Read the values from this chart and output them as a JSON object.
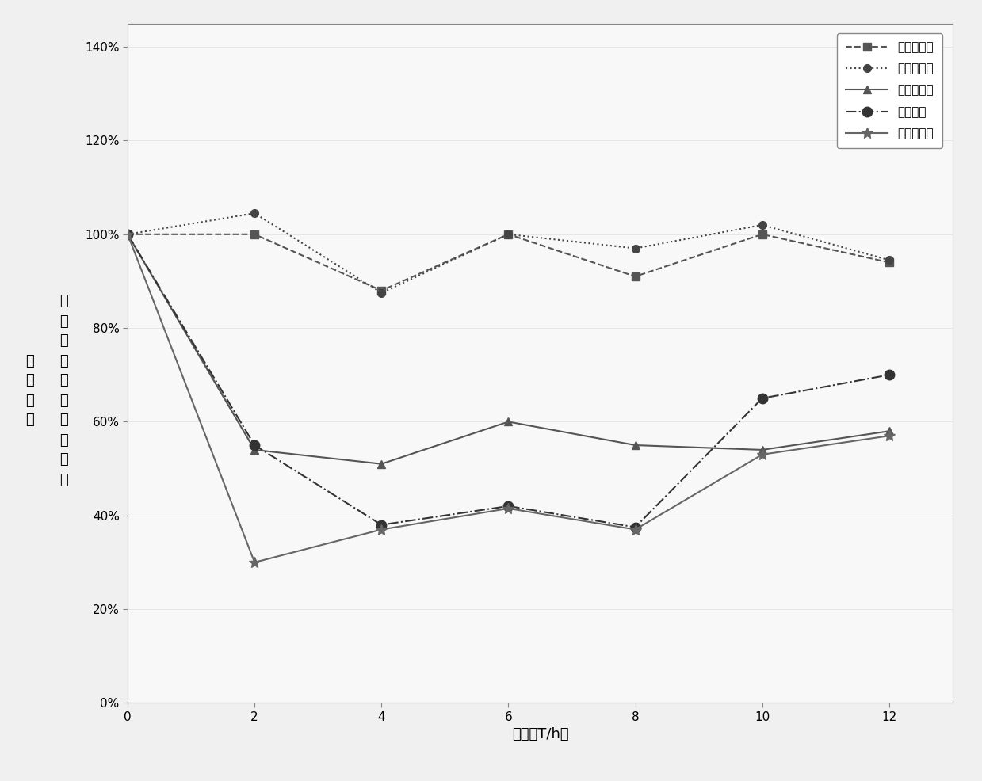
{
  "x": [
    0,
    2,
    4,
    6,
    8,
    10,
    12
  ],
  "series": [
    {
      "name": "生理盐水组",
      "values": [
        1.0,
        1.0,
        0.88,
        1.0,
        0.91,
        1.0,
        0.94
      ],
      "marker": "s",
      "linestyle": "--",
      "color": "#555555",
      "ms": 7
    },
    {
      "name": "空白载体组",
      "values": [
        1.0,
        1.045,
        0.875,
        1.0,
        0.97,
        1.02,
        0.945
      ],
      "marker": "o",
      "linestyle": ":",
      "color": "#444444",
      "ms": 7
    },
    {
      "name": "液晶载药组",
      "values": [
        1.0,
        0.54,
        0.51,
        0.6,
        0.55,
        0.54,
        0.58
      ],
      "marker": "^",
      "linestyle": "-",
      "color": "#555555",
      "ms": 7
    },
    {
      "name": "胰岛素组",
      "values": [
        1.0,
        0.55,
        0.38,
        0.42,
        0.375,
        0.65,
        0.7
      ],
      "marker": "o",
      "linestyle": "-.",
      "color": "#333333",
      "ms": 9
    },
    {
      "name": "脉冲载药组",
      "values": [
        1.0,
        0.3,
        0.37,
        0.415,
        0.37,
        0.53,
        0.57
      ],
      "marker": "*",
      "linestyle": "-",
      "color": "#666666",
      "ms": 10
    }
  ],
  "xlabel": "时间（T/h）",
  "ylabel_left": "血\n糖\n浓\n度",
  "ylabel_right": "（\n与\n初\n始\n血\n糖\n自\n分\n比\n）",
  "xlim": [
    0,
    13
  ],
  "ylim": [
    0.0,
    1.45
  ],
  "xticks": [
    0,
    2,
    4,
    6,
    8,
    10,
    12
  ],
  "yticks": [
    0.0,
    0.2,
    0.4,
    0.6,
    0.8,
    1.0,
    1.2,
    1.4
  ],
  "ytick_labels": [
    "0%",
    "20%",
    "40%",
    "60%",
    "80%",
    "100%",
    "120%",
    "140%"
  ],
  "background_color": "#f0f0f0",
  "plot_bg_color": "#f8f8f8",
  "axis_fontsize": 13,
  "tick_fontsize": 11,
  "legend_fontsize": 11
}
